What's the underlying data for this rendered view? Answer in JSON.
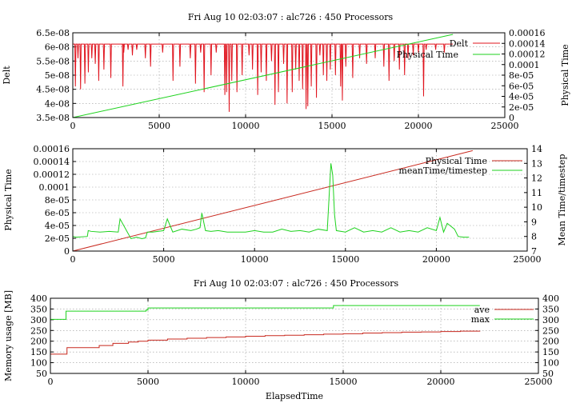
{
  "chart_data": [
    {
      "type": "line",
      "title": "Fri Aug 10 02:03:07 : alc726 : 450 Processors",
      "xlabel": "",
      "ylabel": "Delt",
      "y2label": "Physical Time",
      "xlim": [
        0,
        25000
      ],
      "ylim": [
        3.5e-08,
        6.5e-08
      ],
      "y2lim": [
        0,
        0.00016
      ],
      "xticks": [
        "0",
        "5000",
        "10000",
        "15000",
        "20000",
        "25000"
      ],
      "yticks": [
        "3.5e-08",
        "4e-08",
        "4.5e-08",
        "5e-08",
        "5.5e-08",
        "6e-08",
        "6.5e-08"
      ],
      "y2ticks": [
        "0",
        "2e-05",
        "4e-05",
        "6e-05",
        "8e-05",
        "0.0001",
        "0.00012",
        "0.00014",
        "0.00016"
      ],
      "grid": true,
      "legend_position": "top-right",
      "series": [
        {
          "name": "Delt",
          "axis": "y",
          "color": "#e0141e",
          "baseline": 6.1e-08,
          "x_end": 22000,
          "dips": [
            [
              150,
              4.6e-08
            ],
            [
              300,
              5.6e-08
            ],
            [
              450,
              4.5e-08
            ],
            [
              700,
              4.7e-08
            ],
            [
              900,
              5.1e-08
            ],
            [
              1100,
              5.6e-08
            ],
            [
              1300,
              5.4e-08
            ],
            [
              1500,
              4.8e-08
            ],
            [
              1800,
              5.2e-08
            ],
            [
              2200,
              4.9e-08
            ],
            [
              2900,
              4.6e-08
            ],
            [
              2950,
              5.8e-08
            ],
            [
              3200,
              5.9e-08
            ],
            [
              3450,
              5.7e-08
            ],
            [
              3700,
              5.9e-08
            ],
            [
              4200,
              5.6e-08
            ],
            [
              4500,
              5.3e-08
            ],
            [
              5200,
              5.8e-08
            ],
            [
              5800,
              4.8e-08
            ],
            [
              6200,
              5.3e-08
            ],
            [
              6800,
              5.6e-08
            ],
            [
              7100,
              4.7e-08
            ],
            [
              7400,
              5.8e-08
            ],
            [
              7600,
              4.4e-08
            ],
            [
              8000,
              5e-08
            ],
            [
              8300,
              5.8e-08
            ],
            [
              8800,
              4.3e-08
            ],
            [
              8900,
              4.4e-08
            ],
            [
              9050,
              3.7e-08
            ],
            [
              9200,
              4.8e-08
            ],
            [
              9500,
              4.4e-08
            ],
            [
              9800,
              5e-08
            ],
            [
              10200,
              5.7e-08
            ],
            [
              10400,
              5.2e-08
            ],
            [
              10700,
              4.3e-08
            ],
            [
              10900,
              5.1e-08
            ],
            [
              11200,
              4.8e-08
            ],
            [
              11500,
              5.5e-08
            ],
            [
              11700,
              3.95e-08
            ],
            [
              11900,
              4.4e-08
            ],
            [
              12200,
              5.4e-08
            ],
            [
              12400,
              4e-08
            ],
            [
              12700,
              4.4e-08
            ],
            [
              12900,
              5.2e-08
            ],
            [
              13100,
              4.8e-08
            ],
            [
              13300,
              4.5e-08
            ],
            [
              13500,
              3.8e-08
            ],
            [
              13600,
              3.9e-08
            ],
            [
              13800,
              4.6e-08
            ],
            [
              14100,
              4.2e-08
            ],
            [
              14300,
              5.7e-08
            ],
            [
              14500,
              5e-08
            ],
            [
              14700,
              4.8e-08
            ],
            [
              14900,
              5.2e-08
            ],
            [
              15200,
              5e-08
            ],
            [
              15500,
              4.6e-08
            ],
            [
              15600,
              4.1e-08
            ],
            [
              15800,
              5.3e-08
            ],
            [
              16200,
              4.9e-08
            ],
            [
              16600,
              5.6e-08
            ],
            [
              17000,
              5.4e-08
            ],
            [
              17500,
              5.6e-08
            ],
            [
              18000,
              5.3e-08
            ],
            [
              18300,
              4.8e-08
            ],
            [
              18600,
              5.5e-08
            ],
            [
              18900,
              5.2e-08
            ],
            [
              19200,
              5e-08
            ],
            [
              19400,
              5.6e-08
            ],
            [
              19700,
              5.7e-08
            ],
            [
              20000,
              5.8e-08
            ],
            [
              20300,
              4.25e-08
            ],
            [
              20450,
              5.9e-08
            ],
            [
              21000,
              5.9e-08
            ],
            [
              21500,
              5.8e-08
            ]
          ]
        },
        {
          "name": "Physical Time",
          "axis": "y2",
          "color": "#1ed21e",
          "x": [
            0,
            22000
          ],
          "y": [
            0,
            0.000157
          ]
        }
      ]
    },
    {
      "type": "line",
      "title": "",
      "xlabel": "",
      "ylabel": "Physical Time",
      "y2label": "Mean Time/timestep",
      "xlim": [
        0,
        25000
      ],
      "ylim": [
        0,
        0.00016
      ],
      "y2lim": [
        7,
        14
      ],
      "xticks": [
        "0",
        "5000",
        "10000",
        "15000",
        "20000",
        "25000"
      ],
      "yticks": [
        "0",
        "2e-05",
        "4e-05",
        "6e-05",
        "8e-05",
        "0.0001",
        "0.00012",
        "0.00014",
        "0.00016"
      ],
      "y2ticks": [
        "7",
        "8",
        "9",
        "10",
        "11",
        "12",
        "13",
        "14"
      ],
      "grid": true,
      "legend_position": "top-right",
      "series": [
        {
          "name": "Physical Time",
          "axis": "y",
          "color": "#c8281e",
          "x": [
            0,
            22000
          ],
          "y": [
            0,
            0.000157
          ]
        },
        {
          "name": "meanTime/timestep",
          "axis": "y2",
          "color": "#1ed21e",
          "x": [
            0,
            200,
            800,
            850,
            1000,
            1500,
            2000,
            2500,
            2600,
            3000,
            3200,
            3500,
            3800,
            4000,
            4100,
            4400,
            5000,
            5200,
            5500,
            6000,
            6500,
            6800,
            7000,
            7100,
            7300,
            7600,
            8000,
            8500,
            9000,
            9500,
            10000,
            10500,
            11000,
            11500,
            12000,
            12500,
            13000,
            13500,
            14000,
            14200,
            14300,
            14400,
            14500,
            15000,
            15500,
            16000,
            16500,
            17000,
            17500,
            18000,
            18500,
            19000,
            19500,
            20000,
            20200,
            20400,
            20600,
            21000,
            21200,
            21500,
            21800
          ],
          "y": [
            8.0,
            7.95,
            8.0,
            8.4,
            8.35,
            8.3,
            8.35,
            8.3,
            9.2,
            8.3,
            7.85,
            7.95,
            7.85,
            7.9,
            8.3,
            8.3,
            8.4,
            9.2,
            8.3,
            8.5,
            8.4,
            8.5,
            8.6,
            9.6,
            8.4,
            8.35,
            8.4,
            8.3,
            8.3,
            8.3,
            8.4,
            8.3,
            8.3,
            8.5,
            8.35,
            8.4,
            8.3,
            8.5,
            8.4,
            13.0,
            12.2,
            9.5,
            8.4,
            8.3,
            8.6,
            8.3,
            8.4,
            8.3,
            8.6,
            8.3,
            8.4,
            8.3,
            8.6,
            8.4,
            9.3,
            8.3,
            8.9,
            8.5,
            8.0,
            7.95,
            7.95
          ]
        }
      ]
    },
    {
      "type": "line",
      "title": "Fri Aug 10 02:03:07 : alc726 : 450 Processors",
      "xlabel": "ElapsedTime",
      "ylabel": "Memory usage [MB]",
      "y2label": "",
      "xlim": [
        0,
        25000
      ],
      "ylim": [
        50,
        400
      ],
      "y2lim": [
        50,
        400
      ],
      "xticks": [
        "0",
        "5000",
        "10000",
        "15000",
        "20000",
        "25000"
      ],
      "yticks": [
        "50",
        "100",
        "150",
        "200",
        "250",
        "300",
        "350",
        "400"
      ],
      "y2ticks": [
        "50",
        "100",
        "150",
        "200",
        "250",
        "300",
        "350",
        "400"
      ],
      "grid": true,
      "legend_position": "top-right",
      "series": [
        {
          "name": "ave",
          "axis": "y",
          "color": "#c8281e",
          "step": true,
          "x": [
            0,
            800,
            850,
            2500,
            3200,
            4000,
            4500,
            5000,
            6000,
            7000,
            8000,
            9000,
            10000,
            11000,
            12000,
            13000,
            14000,
            15000,
            16000,
            17000,
            18000,
            19000,
            20000,
            21000,
            22000
          ],
          "y": [
            140,
            140,
            170,
            180,
            190,
            196,
            200,
            205,
            210,
            214,
            217,
            220,
            223,
            226,
            228,
            230,
            233,
            235,
            238,
            240,
            242,
            243,
            245,
            247,
            248
          ]
        },
        {
          "name": "max",
          "axis": "y",
          "color": "#1ed21e",
          "step": true,
          "x": [
            0,
            700,
            800,
            4900,
            5000,
            14400,
            14500,
            22000
          ],
          "y": [
            302,
            302,
            340,
            345,
            355,
            355,
            366,
            366
          ]
        }
      ]
    }
  ]
}
